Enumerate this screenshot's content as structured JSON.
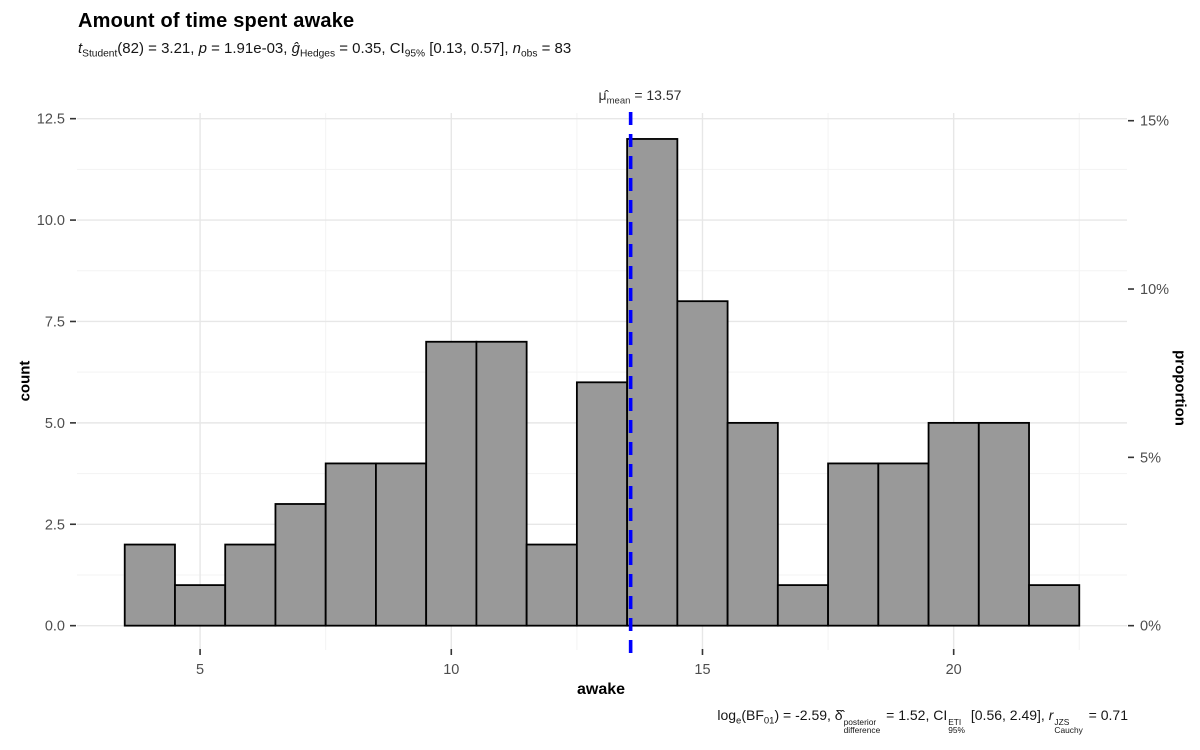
{
  "plot": {
    "title": "Amount of time spent awake",
    "subtitle_segments": [
      {
        "t": "t",
        "s": "i"
      },
      {
        "t": "Student",
        "s": "sub"
      },
      {
        "t": "(82) = 3.21, ",
        "s": "n"
      },
      {
        "t": "p",
        "s": "i"
      },
      {
        "t": " = 1.91e-03, ",
        "s": "n"
      },
      {
        "t": "ĝ",
        "s": "i"
      },
      {
        "t": "Hedges",
        "s": "sub"
      },
      {
        "t": " = 0.35, CI",
        "s": "n"
      },
      {
        "t": "95%",
        "s": "sub"
      },
      {
        "t": " [0.13, 0.57], ",
        "s": "n"
      },
      {
        "t": "n",
        "s": "i"
      },
      {
        "t": "obs",
        "s": "sub"
      },
      {
        "t": " = 83",
        "s": "n"
      }
    ],
    "mean_label_segments": [
      {
        "t": "μ̂",
        "s": "n"
      },
      {
        "t": "mean",
        "s": "sub"
      },
      {
        "t": " = 13.57",
        "s": "n"
      }
    ],
    "caption_segments": [
      {
        "t": "log",
        "s": "n"
      },
      {
        "t": "e",
        "s": "sub"
      },
      {
        "t": "(BF",
        "s": "n"
      },
      {
        "t": "01",
        "s": "sub"
      },
      {
        "t": ") = -2.59, ",
        "s": "n"
      },
      {
        "t": "δ̂",
        "s": "n"
      },
      {
        "s": "stack",
        "sup": "posterior",
        "sub": "difference"
      },
      {
        "t": " = 1.52, CI",
        "s": "n"
      },
      {
        "s": "stack",
        "sup": "ETI",
        "sub": "95%"
      },
      {
        "t": " [0.56, 2.49], ",
        "s": "n"
      },
      {
        "t": "r",
        "s": "i"
      },
      {
        "s": "stack",
        "sup": "JZS",
        "sub": "Cauchy"
      },
      {
        "t": " = 0.71",
        "s": "n"
      }
    ],
    "colors": {
      "background": "#FFFFFF",
      "bar_fill": "#999999",
      "bar_stroke": "#000000",
      "mean_line": "#0000FF",
      "grid_major": "#E7E7E7",
      "grid_minor": "#F3F3F3",
      "tick": "#333333",
      "tick_label": "#4D4D4D",
      "text": "#000000"
    }
  },
  "chart_data": {
    "type": "bar",
    "variant": "histogram",
    "title": "Amount of time spent awake",
    "subtitle_text": "t Student(82) = 3.21, p = 1.91e-03, g-hat Hedges = 0.35, CI 95% [0.13, 0.57], n obs = 83",
    "caption_text": "log e(BF01) = -2.59, delta-hat posterior/difference = 1.52, CI ETI 95% [0.56, 2.49], r JZS Cauchy = 0.71",
    "xlabel": "awake",
    "ylabel": "count",
    "ylabel_right": "proportion",
    "binwidth": 1,
    "n_obs": 83,
    "bin_centers": [
      4,
      5,
      6,
      7,
      8,
      9,
      10,
      11,
      12,
      13,
      14,
      15,
      16,
      17,
      18,
      19,
      20,
      21,
      22
    ],
    "counts": [
      2,
      1,
      2,
      3,
      4,
      4,
      7,
      7,
      2,
      6,
      12,
      8,
      5,
      1,
      4,
      4,
      5,
      5,
      1
    ],
    "xlim": [
      2.55,
      23.45
    ],
    "ylim": [
      -0.6,
      12.64
    ],
    "x_ticks": {
      "values": [
        5,
        10,
        15,
        20
      ],
      "labels": [
        "5",
        "10",
        "15",
        "20"
      ]
    },
    "y_ticks_left": {
      "values": [
        0,
        2.5,
        5,
        7.5,
        10,
        12.5
      ],
      "labels": [
        "0.0",
        "2.5",
        "5.0",
        "7.5",
        "10.0",
        "12.5"
      ]
    },
    "y_ticks_right": {
      "values": [
        0,
        5,
        10,
        15
      ],
      "labels": [
        "0%",
        "5%",
        "10%",
        "15%"
      ]
    },
    "grid": {
      "major": true,
      "minor": true
    },
    "legend_position": "none",
    "mean_line": {
      "x": 13.57,
      "label_value": "13.57",
      "style": "dashed"
    }
  }
}
